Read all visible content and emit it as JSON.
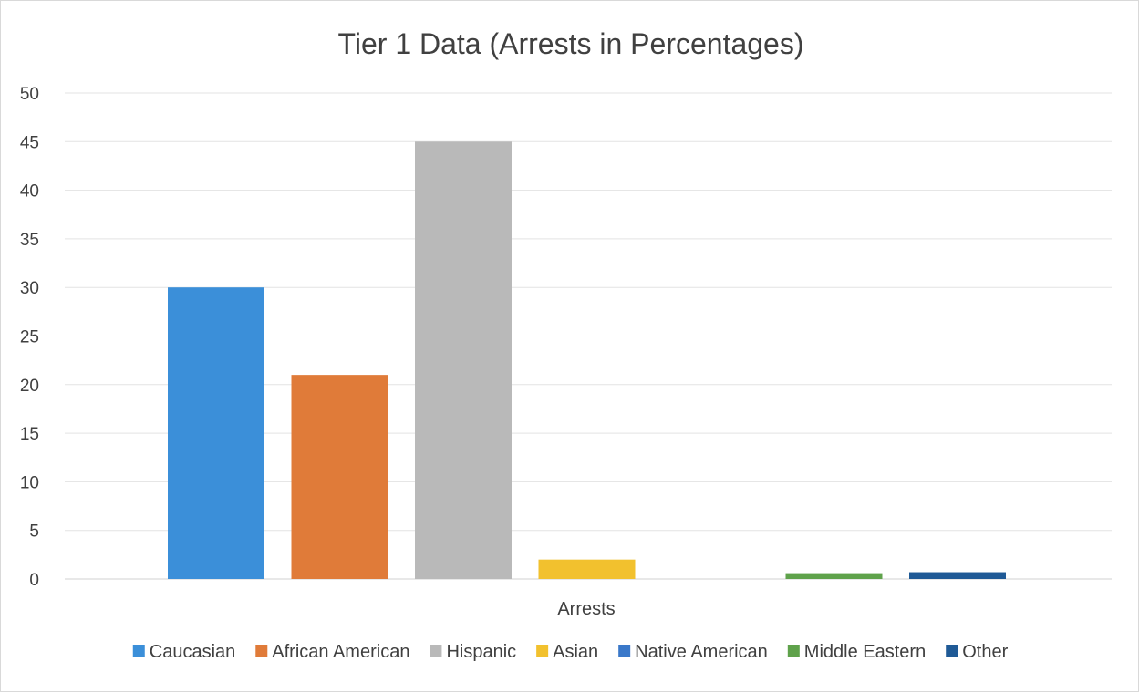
{
  "chart_data": {
    "type": "bar",
    "title": "Tier 1 Data (Arrests in Percentages)",
    "xlabel": "Arrests",
    "ylabel": "",
    "ylim": [
      0,
      50
    ],
    "yticks": [
      0,
      5,
      10,
      15,
      20,
      25,
      30,
      35,
      40,
      45,
      50
    ],
    "grid": true,
    "legend_position": "bottom",
    "categories": [
      "Arrests"
    ],
    "series": [
      {
        "name": "Caucasian",
        "values": [
          30
        ],
        "color": "#3b8fd9"
      },
      {
        "name": "African American",
        "values": [
          21
        ],
        "color": "#e07b39"
      },
      {
        "name": "Hispanic",
        "values": [
          45
        ],
        "color": "#b9b9b9"
      },
      {
        "name": "Asian",
        "values": [
          2
        ],
        "color": "#f2c12e"
      },
      {
        "name": "Native American",
        "values": [
          0
        ],
        "color": "#3a78c9"
      },
      {
        "name": "Middle Eastern",
        "values": [
          0.6
        ],
        "color": "#5fa24b"
      },
      {
        "name": "Other",
        "values": [
          0.7
        ],
        "color": "#1f5a96"
      }
    ]
  }
}
